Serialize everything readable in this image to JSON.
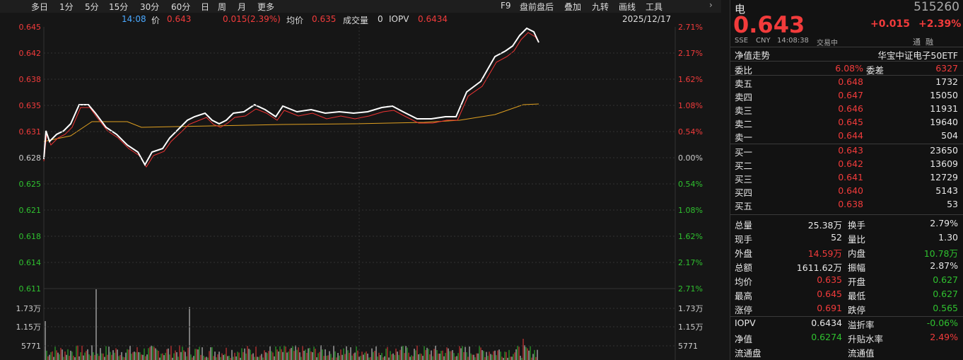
{
  "toolbar": {
    "periods": [
      "多日",
      "1分",
      "5分",
      "15分",
      "30分",
      "60分",
      "日",
      "周",
      "月",
      "更多"
    ],
    "tools": [
      "F9",
      "盘前盘后",
      "叠加",
      "九转",
      "画线",
      "工具"
    ]
  },
  "info": {
    "time": "14:08",
    "price_label": "价",
    "price": "0.643",
    "change": "0.015(2.39%)",
    "avg_label": "均价",
    "avg": "0.635",
    "volume_label": "成交量",
    "volume": "0",
    "iopv_label": "IOPV",
    "iopv": "0.6434",
    "date": "2025/12/17"
  },
  "axis": {
    "price_left": [
      "0.645",
      "0.642",
      "0.638",
      "0.635",
      "0.631",
      "0.628",
      "0.625",
      "0.621",
      "0.618",
      "0.614",
      "0.611"
    ],
    "pct_right": [
      "2.71%",
      "2.17%",
      "1.62%",
      "1.08%",
      "0.54%",
      "0.00%",
      "0.54%",
      "1.08%",
      "1.62%",
      "2.17%",
      "2.71%"
    ],
    "volume_left": [
      "1.73万",
      "1.15万",
      "5771"
    ],
    "volume_right": [
      "1.73万",
      "1.15万",
      "5771"
    ]
  },
  "quote": {
    "name": "电",
    "code": "515260",
    "price": "0.643",
    "change": "+0.015",
    "change_pct": "+2.39%",
    "exchange": "SSE",
    "currency": "CNY",
    "time": "14:08:38",
    "status": "交易中",
    "tags": [
      "通",
      "融"
    ],
    "nav_label": "净值走势",
    "fund_name": "华宝中证电子50ETF"
  },
  "order_ratio": [
    "委比",
    "6.08%",
    "委差",
    "6327"
  ],
  "asks": [
    {
      "label": "卖五",
      "price": "0.648",
      "volume": "1732"
    },
    {
      "label": "卖四",
      "price": "0.647",
      "volume": "15050"
    },
    {
      "label": "卖三",
      "price": "0.646",
      "volume": "11931"
    },
    {
      "label": "卖二",
      "price": "0.645",
      "volume": "19640"
    },
    {
      "label": "卖一",
      "price": "0.644",
      "volume": "504"
    }
  ],
  "bids": [
    {
      "label": "买一",
      "price": "0.643",
      "volume": "23650"
    },
    {
      "label": "买二",
      "price": "0.642",
      "volume": "13609"
    },
    {
      "label": "买三",
      "price": "0.641",
      "volume": "12729"
    },
    {
      "label": "买四",
      "price": "0.640",
      "volume": "5143"
    },
    {
      "label": "买五",
      "price": "0.638",
      "volume": "53"
    }
  ],
  "stats": [
    [
      "总量",
      "25.38万",
      "换手",
      "2.79%"
    ],
    [
      "现手",
      "52",
      "量比",
      "1.30"
    ],
    [
      "外盘",
      "14.59万",
      "内盘",
      "10.78万"
    ],
    [
      "总额",
      "1611.62万",
      "振幅",
      "2.87%"
    ],
    [
      "均价",
      "0.635",
      "开盘",
      "0.627"
    ],
    [
      "最高",
      "0.645",
      "最低",
      "0.627"
    ],
    [
      "涨停",
      "0.691",
      "跌停",
      "0.565"
    ]
  ],
  "bottom": [
    [
      "IOPV",
      "0.6434",
      "溢折率",
      "-0.06%"
    ],
    [
      "净值",
      "0.6274",
      "升贴水率",
      "2.49%"
    ],
    [
      "流通盘",
      "流通值"
    ]
  ]
}
